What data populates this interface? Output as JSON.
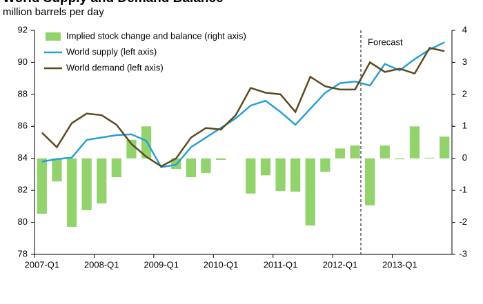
{
  "chart_data": {
    "type": "bar_line",
    "title": "World Supply and Demand Balance",
    "subtitle": "million barrels per day",
    "categories": [
      "2007-Q1",
      null,
      null,
      null,
      "2008-Q1",
      null,
      null,
      null,
      "2009-Q1",
      null,
      null,
      null,
      "2010-Q1",
      null,
      null,
      null,
      "2011-Q1",
      null,
      null,
      null,
      "2012-Q1",
      null,
      null,
      null,
      "2013-Q1",
      null,
      null,
      null
    ],
    "series": [
      {
        "name": "Implied stock change and balance (right axis)",
        "color": "#92d36e",
        "kind": "bar",
        "axis": "y2",
        "values": [
          -1.73,
          -0.72,
          -2.14,
          -1.62,
          -1.41,
          -0.59,
          0.58,
          1.0,
          0,
          -0.33,
          -0.59,
          -0.46,
          -0.05,
          0,
          -1.1,
          -0.53,
          -1.02,
          -1.04,
          -2.1,
          -0.42,
          0.31,
          0.4,
          -1.47,
          0.4,
          -0.03,
          1.0,
          0.02,
          0.68
        ]
      },
      {
        "name": "World supply (left axis)",
        "color": "#2a9fd6",
        "kind": "line",
        "values": [
          83.8,
          83.95,
          84.05,
          85.15,
          85.3,
          85.45,
          85.5,
          85.1,
          83.45,
          83.6,
          84.7,
          85.3,
          85.9,
          86.5,
          87.3,
          87.6,
          86.9,
          86.1,
          87.1,
          88.1,
          88.7,
          88.8,
          88.55,
          89.9,
          89.5,
          90.2,
          90.8,
          91.25
        ]
      },
      {
        "name": "World demand (left axis)",
        "color": "#5b4a1f",
        "kind": "line",
        "values": [
          85.6,
          84.7,
          86.2,
          86.8,
          86.7,
          86.1,
          84.9,
          84.1,
          83.5,
          84.0,
          85.3,
          85.9,
          85.8,
          86.7,
          88.4,
          88.1,
          88.0,
          86.9,
          89.1,
          88.5,
          88.3,
          88.3,
          90.0,
          89.4,
          89.6,
          89.3,
          90.9,
          90.7
        ]
      }
    ],
    "ylim": [
      78,
      92
    ],
    "yticks": [
      78,
      80,
      82,
      84,
      86,
      88,
      90,
      92
    ],
    "y2lim": [
      -3,
      4
    ],
    "y2ticks": [
      -3,
      -2,
      -1,
      0,
      1,
      2,
      3,
      4
    ],
    "annotations": [
      "Forecast"
    ],
    "legend": "top-left"
  }
}
